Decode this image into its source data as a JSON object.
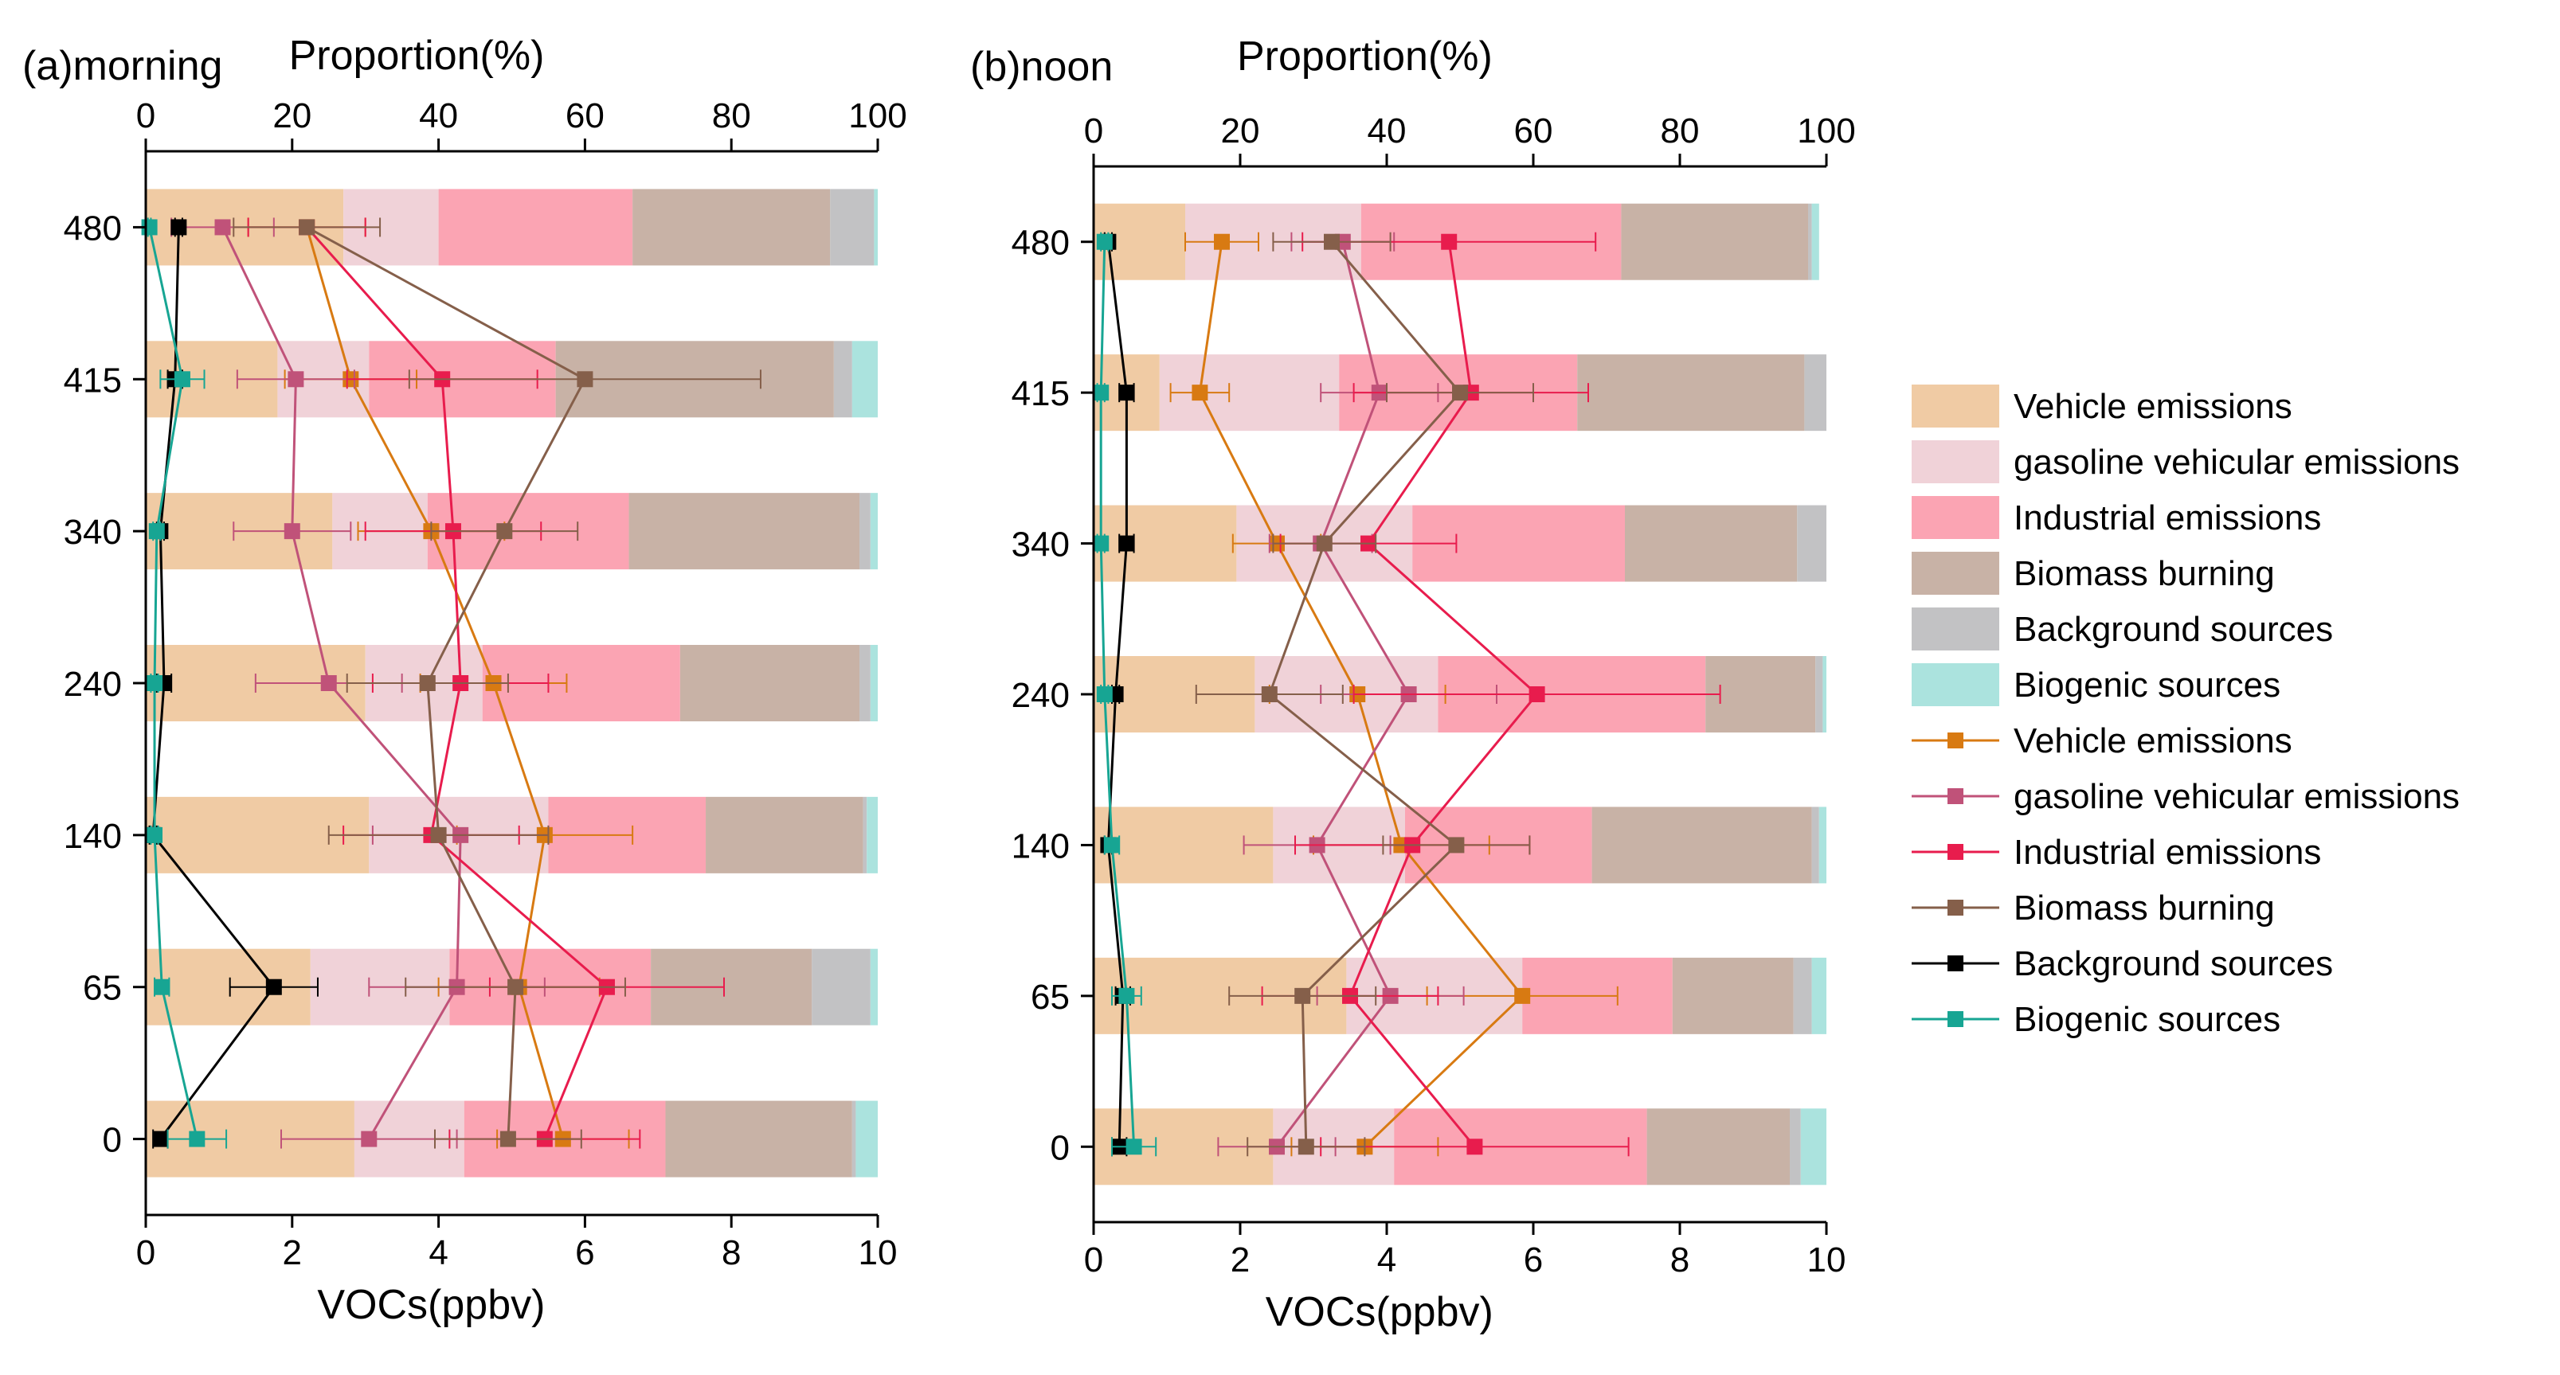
{
  "legend": {
    "items": [
      {
        "kind": "bar",
        "label": "Vehicle emissions",
        "color": "#f0cba4"
      },
      {
        "kind": "bar",
        "label": "gasoline vehicular emissions",
        "color": "#f0d2d8"
      },
      {
        "kind": "bar",
        "label": "Industrial emissions",
        "color": "#fba4b3"
      },
      {
        "kind": "bar",
        "label": "Biomass burning",
        "color": "#c8b2a6"
      },
      {
        "kind": "bar",
        "label": "Background sources",
        "color": "#c2c2c4"
      },
      {
        "kind": "bar",
        "label": "Biogenic sources",
        "color": "#abe3de"
      },
      {
        "kind": "line",
        "label": "Vehicle emissions",
        "color": "#d87a12"
      },
      {
        "kind": "line",
        "label": "gasoline vehicular emissions",
        "color": "#c05279"
      },
      {
        "kind": "line",
        "label": "Industrial emissions",
        "color": "#e81c4d"
      },
      {
        "kind": "line",
        "label": "Biomass burning",
        "color": "#855f4a"
      },
      {
        "kind": "line",
        "label": "Background sources",
        "color": "#000000"
      },
      {
        "kind": "line",
        "label": "Biogenic sources",
        "color": "#17a593"
      }
    ]
  },
  "chart_data": [
    {
      "type": "bar",
      "subtype": "stacked-horizontal-bar-with-line-overlay",
      "title": "(a)morning",
      "top_axis_label": "Proportion(%)",
      "xlabel": "VOCs(ppbv)",
      "top_axis_range": [
        0,
        100
      ],
      "top_axis_ticks": [
        "0",
        "20",
        "40",
        "60",
        "80",
        "100"
      ],
      "bottom_axis_range": [
        0,
        10
      ],
      "bottom_axis_ticks": [
        "0",
        "2",
        "4",
        "6",
        "8",
        "10"
      ],
      "categories": [
        "0",
        "65",
        "140",
        "240",
        "340",
        "415",
        "480"
      ],
      "bar_series": [
        {
          "name": "Vehicle emissions",
          "values": [
            28.5,
            22.5,
            30.5,
            30,
            25.5,
            18,
            27
          ]
        },
        {
          "name": "gasoline vehicular emissions",
          "values": [
            15,
            19,
            24.5,
            16,
            13,
            12.5,
            13
          ]
        },
        {
          "name": "Industrial emissions",
          "values": [
            27.5,
            27.5,
            21.5,
            27,
            27.5,
            25.5,
            26.5
          ]
        },
        {
          "name": "Biomass burning",
          "values": [
            25.5,
            22,
            21.5,
            24.5,
            31.5,
            38,
            27
          ]
        },
        {
          "name": "Background sources",
          "values": [
            0.5,
            8,
            0.5,
            1.5,
            1.5,
            2.5,
            6
          ]
        },
        {
          "name": "Biogenic sources",
          "values": [
            3,
            1,
            1.5,
            1,
            1,
            3.5,
            0.5
          ]
        }
      ],
      "line_series": [
        {
          "name": "Vehicle emissions",
          "values": [
            5.7,
            5.1,
            5.45,
            4.75,
            3.9,
            2.8,
            2.2
          ],
          "errors": [
            0.9,
            1.1,
            1.2,
            1.0,
            1.0,
            0.9,
            0.8
          ]
        },
        {
          "name": "gasoline vehicular emissions",
          "values": [
            3.05,
            4.25,
            4.3,
            2.5,
            2.0,
            2.05,
            1.05
          ],
          "errors": [
            1.2,
            1.2,
            1.2,
            1.0,
            0.8,
            0.8,
            0.7
          ]
        },
        {
          "name": "Industrial emissions",
          "values": [
            5.45,
            6.3,
            3.9,
            4.3,
            4.2,
            4.05,
            2.2
          ],
          "errors": [
            1.3,
            1.6,
            1.2,
            1.2,
            1.2,
            1.3,
            0.8
          ]
        },
        {
          "name": "Biomass burning",
          "values": [
            4.95,
            5.05,
            4.0,
            3.85,
            4.9,
            6.0,
            2.2
          ],
          "errors": [
            1.0,
            1.5,
            1.5,
            1.1,
            1.0,
            2.4,
            1.0
          ]
        },
        {
          "name": "Background sources",
          "values": [
            0.2,
            1.75,
            0.1,
            0.25,
            0.2,
            0.4,
            0.45
          ],
          "errors": [
            0.1,
            0.6,
            0.05,
            0.1,
            0.05,
            0.1,
            0.05
          ]
        },
        {
          "name": "Biogenic sources",
          "values": [
            0.7,
            0.22,
            0.12,
            0.12,
            0.15,
            0.5,
            0.05
          ],
          "errors": [
            0.4,
            0.1,
            0.05,
            0.05,
            0.05,
            0.3,
            0.02
          ]
        }
      ]
    },
    {
      "type": "bar",
      "subtype": "stacked-horizontal-bar-with-line-overlay",
      "title": "(b)noon",
      "top_axis_label": "Proportion(%)",
      "xlabel": "VOCs(ppbv)",
      "top_axis_range": [
        0,
        100
      ],
      "top_axis_ticks": [
        "0",
        "20",
        "40",
        "60",
        "80",
        "100"
      ],
      "bottom_axis_range": [
        0,
        10
      ],
      "bottom_axis_ticks": [
        "0",
        "2",
        "4",
        "6",
        "8",
        "10"
      ],
      "categories": [
        "0",
        "65",
        "140",
        "240",
        "340",
        "415",
        "480"
      ],
      "bar_series": [
        {
          "name": "Vehicle emissions",
          "values": [
            24.5,
            34.5,
            24.5,
            22,
            19.5,
            9,
            12.5
          ]
        },
        {
          "name": "gasoline vehicular emissions",
          "values": [
            16.5,
            24,
            18,
            25,
            24,
            24.5,
            24
          ]
        },
        {
          "name": "Industrial emissions",
          "values": [
            34.5,
            20.5,
            25.5,
            36.5,
            29,
            32.5,
            35.5
          ]
        },
        {
          "name": "Biomass burning",
          "values": [
            19.5,
            16.5,
            30,
            15,
            23.5,
            31,
            25.5
          ]
        },
        {
          "name": "Background sources",
          "values": [
            1.5,
            2.5,
            1,
            1,
            4,
            3,
            0.5
          ]
        },
        {
          "name": "Biogenic sources",
          "values": [
            3.5,
            2,
            1,
            0.5,
            0,
            0,
            1
          ]
        }
      ],
      "line_series": [
        {
          "name": "Vehicle emissions",
          "values": [
            3.7,
            5.85,
            4.2,
            3.6,
            2.5,
            1.45,
            1.75
          ],
          "errors": [
            1.0,
            1.3,
            1.2,
            1.2,
            0.6,
            0.4,
            0.5
          ]
        },
        {
          "name": "gasoline vehicular emissions",
          "values": [
            2.5,
            4.05,
            3.05,
            4.3,
            3.1,
            3.9,
            3.4
          ],
          "errors": [
            0.8,
            1.0,
            1.0,
            1.2,
            0.7,
            0.8,
            0.7
          ]
        },
        {
          "name": "Industrial emissions",
          "values": [
            5.2,
            3.5,
            4.35,
            6.05,
            3.75,
            5.15,
            4.85
          ],
          "errors": [
            2.1,
            1.2,
            1.6,
            2.5,
            1.2,
            1.6,
            2.0
          ]
        },
        {
          "name": "Biomass burning",
          "values": [
            2.9,
            2.85,
            4.95,
            2.4,
            3.15,
            5.0,
            3.25
          ],
          "errors": [
            0.8,
            1.0,
            1.0,
            1.0,
            0.7,
            1.0,
            0.8
          ]
        },
        {
          "name": "Background sources",
          "values": [
            0.35,
            0.4,
            0.2,
            0.3,
            0.45,
            0.45,
            0.2
          ],
          "errors": [
            0.1,
            0.1,
            0.05,
            0.05,
            0.1,
            0.1,
            0.05
          ]
        },
        {
          "name": "Biogenic sources",
          "values": [
            0.55,
            0.45,
            0.25,
            0.15,
            0.1,
            0.1,
            0.15
          ],
          "errors": [
            0.3,
            0.2,
            0.1,
            0.05,
            0.05,
            0.05,
            0.05
          ]
        }
      ]
    }
  ]
}
